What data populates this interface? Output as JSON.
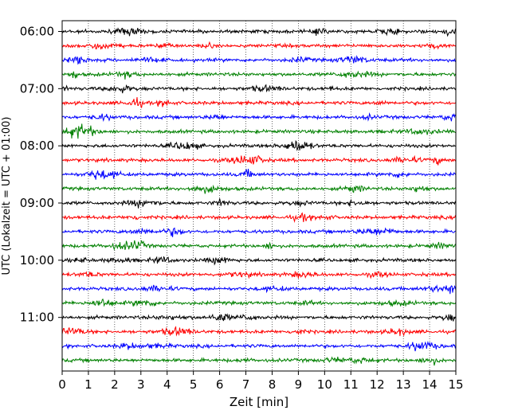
{
  "chart_data": {
    "type": "line",
    "title": "",
    "xlabel": "Zeit  [min]",
    "ylabel": "UTC (Lokalzeit = UTC + 01:00)",
    "xlim": [
      0,
      15
    ],
    "x_ticks": [
      "0",
      "1",
      "2",
      "3",
      "4",
      "5",
      "6",
      "7",
      "8",
      "9",
      "10",
      "11",
      "12",
      "13",
      "14",
      "15"
    ],
    "y_ticks": [
      "06:00",
      "07:00",
      "08:00",
      "09:00",
      "10:00",
      "11:00"
    ],
    "trace_minutes": 15,
    "trace_start_times": [
      "06:00",
      "06:15",
      "06:30",
      "06:45",
      "07:00",
      "07:15",
      "07:30",
      "07:45",
      "08:00",
      "08:15",
      "08:30",
      "08:45",
      "09:00",
      "09:15",
      "09:30",
      "09:45",
      "10:00",
      "10:15",
      "10:30",
      "10:45",
      "11:00",
      "11:15",
      "11:30",
      "11:45"
    ],
    "trace_colors": [
      "#000000",
      "#ff0000",
      "#0000ff",
      "#008000"
    ],
    "grid": "vertical dotted"
  }
}
